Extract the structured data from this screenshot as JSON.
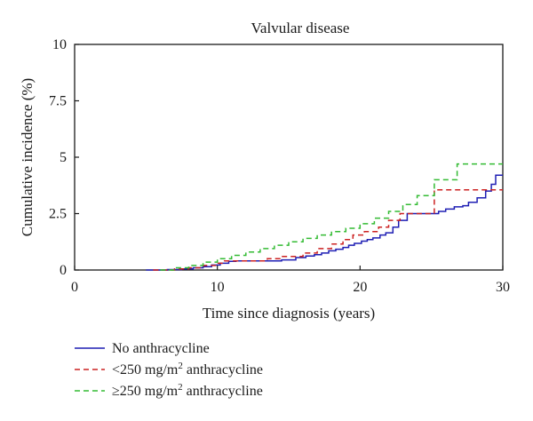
{
  "chart_data": {
    "type": "line",
    "title": "Valvular disease",
    "xlabel": "Time since diagnosis (years)",
    "ylabel": "Cumulative incidence (%)",
    "xlim": [
      0,
      30
    ],
    "ylim": [
      0,
      10
    ],
    "xticks": [
      "0",
      "10",
      "20",
      "30"
    ],
    "yticks": [
      "0",
      "2.5",
      "5",
      "7.5",
      "10"
    ],
    "legend_position": "below",
    "grid": false,
    "series": [
      {
        "name": "No anthracycline",
        "legend_parts": [
          "No anthracycline"
        ],
        "color": "#1f1fb4",
        "style": "solid",
        "steps": [
          [
            5,
            0
          ],
          [
            6.5,
            0.02
          ],
          [
            7.5,
            0.05
          ],
          [
            8.3,
            0.1
          ],
          [
            9,
            0.15
          ],
          [
            9.6,
            0.22
          ],
          [
            10.2,
            0.3
          ],
          [
            10.8,
            0.38
          ],
          [
            11.3,
            0.4
          ],
          [
            14.5,
            0.45
          ],
          [
            15.5,
            0.55
          ],
          [
            16.2,
            0.62
          ],
          [
            16.8,
            0.68
          ],
          [
            17.3,
            0.75
          ],
          [
            17.8,
            0.85
          ],
          [
            18.3,
            0.92
          ],
          [
            18.8,
            1.0
          ],
          [
            19.2,
            1.1
          ],
          [
            19.6,
            1.18
          ],
          [
            20.1,
            1.28
          ],
          [
            20.5,
            1.35
          ],
          [
            20.9,
            1.42
          ],
          [
            21.4,
            1.55
          ],
          [
            21.8,
            1.65
          ],
          [
            22.3,
            1.9
          ],
          [
            22.7,
            2.2
          ],
          [
            23.3,
            2.5
          ],
          [
            25.5,
            2.6
          ],
          [
            26,
            2.7
          ],
          [
            26.6,
            2.8
          ],
          [
            27.2,
            2.85
          ],
          [
            27.6,
            3.0
          ],
          [
            28.2,
            3.2
          ],
          [
            28.8,
            3.5
          ],
          [
            29.2,
            3.8
          ],
          [
            29.5,
            4.2
          ],
          [
            30,
            4.2
          ]
        ]
      },
      {
        "name": "<250 mg/m² anthracycline",
        "legend_parts": [
          "<250 mg/m",
          "2",
          " anthracycline"
        ],
        "color": "#cc2222",
        "style": "dashed",
        "steps": [
          [
            5.5,
            0
          ],
          [
            7,
            0.05
          ],
          [
            8,
            0.1
          ],
          [
            9,
            0.2
          ],
          [
            10,
            0.3
          ],
          [
            10.5,
            0.4
          ],
          [
            13.5,
            0.5
          ],
          [
            14.5,
            0.6
          ],
          [
            16,
            0.75
          ],
          [
            17,
            0.95
          ],
          [
            18,
            1.15
          ],
          [
            18.8,
            1.35
          ],
          [
            19.5,
            1.55
          ],
          [
            20.3,
            1.7
          ],
          [
            21.3,
            1.9
          ],
          [
            22,
            2.2
          ],
          [
            22.8,
            2.5
          ],
          [
            25.2,
            3.55
          ],
          [
            30,
            3.55
          ]
        ]
      },
      {
        "name": "≥250 mg/m² anthracycline",
        "legend_parts": [
          "≥250 mg/m",
          "2",
          " anthracycline"
        ],
        "color": "#33bb33",
        "style": "dashed",
        "steps": [
          [
            6,
            0
          ],
          [
            7,
            0.1
          ],
          [
            8,
            0.2
          ],
          [
            9,
            0.35
          ],
          [
            10,
            0.5
          ],
          [
            11,
            0.65
          ],
          [
            12,
            0.8
          ],
          [
            13,
            0.95
          ],
          [
            14,
            1.1
          ],
          [
            15,
            1.25
          ],
          [
            16,
            1.4
          ],
          [
            17,
            1.55
          ],
          [
            18,
            1.7
          ],
          [
            19,
            1.85
          ],
          [
            20,
            2.05
          ],
          [
            21,
            2.3
          ],
          [
            22,
            2.6
          ],
          [
            23,
            2.9
          ],
          [
            24,
            3.3
          ],
          [
            25.2,
            4.0
          ],
          [
            26.8,
            4.7
          ],
          [
            30,
            4.7
          ]
        ]
      }
    ]
  }
}
